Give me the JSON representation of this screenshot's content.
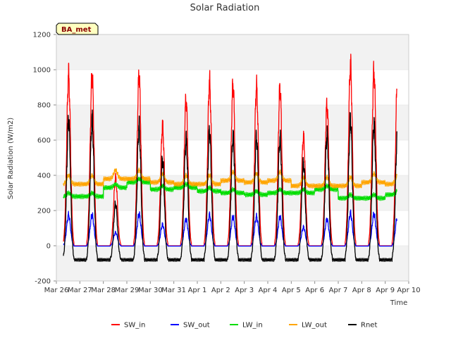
{
  "chart_data": {
    "type": "line",
    "title": "Solar Radiation",
    "xlabel": "Time",
    "ylabel": "Solar Radiation (W/m2)",
    "badge": "BA_met",
    "ylim": [
      -200,
      1200
    ],
    "yticks": [
      -200,
      0,
      200,
      400,
      600,
      800,
      1000,
      1200
    ],
    "xlim": [
      0,
      15
    ],
    "xticks": [
      "Mar 26",
      "Mar 27",
      "Mar 28",
      "Mar 29",
      "Mar 30",
      "Mar 31",
      "Apr 1",
      "Apr 2",
      "Apr 3",
      "Apr 4",
      "Apr 5",
      "Apr 6",
      "Apr 7",
      "Apr 8",
      "Apr 9",
      "Apr 10"
    ],
    "grid": "horizontal bands",
    "legend_position": "bottom",
    "x_start": 0.3,
    "x_end": 14.5,
    "daily_peak_days": [
      1,
      2,
      3,
      4,
      5,
      6,
      7,
      8,
      9,
      10,
      11,
      12,
      13,
      14
    ],
    "series": [
      {
        "name": "SW_in",
        "color": "#ff0000",
        "daily_peak": [
          970,
          385,
          970,
          680,
          830,
          930,
          915,
          905,
          895,
          620,
          800,
          1030,
          990,
          945
        ]
      },
      {
        "name": "SW_out",
        "color": "#0000ff",
        "daily_peak": [
          175,
          75,
          180,
          120,
          150,
          175,
          165,
          165,
          165,
          105,
          150,
          185,
          180,
          170
        ]
      },
      {
        "name": "LW_in",
        "color": "#00dd00",
        "daily_level": [
          280,
          330,
          360,
          320,
          330,
          310,
          300,
          290,
          300,
          300,
          320,
          270,
          270,
          290
        ]
      },
      {
        "name": "LW_out",
        "color": "#ffa500",
        "daily_level": [
          350,
          380,
          380,
          360,
          350,
          350,
          370,
          360,
          370,
          340,
          340,
          340,
          360,
          350
        ]
      },
      {
        "name": "Rnet",
        "color": "#000000",
        "daily_peak": [
          715,
          240,
          680,
          490,
          600,
          650,
          620,
          615,
          610,
          470,
          630,
          720,
          690,
          645
        ]
      }
    ]
  }
}
